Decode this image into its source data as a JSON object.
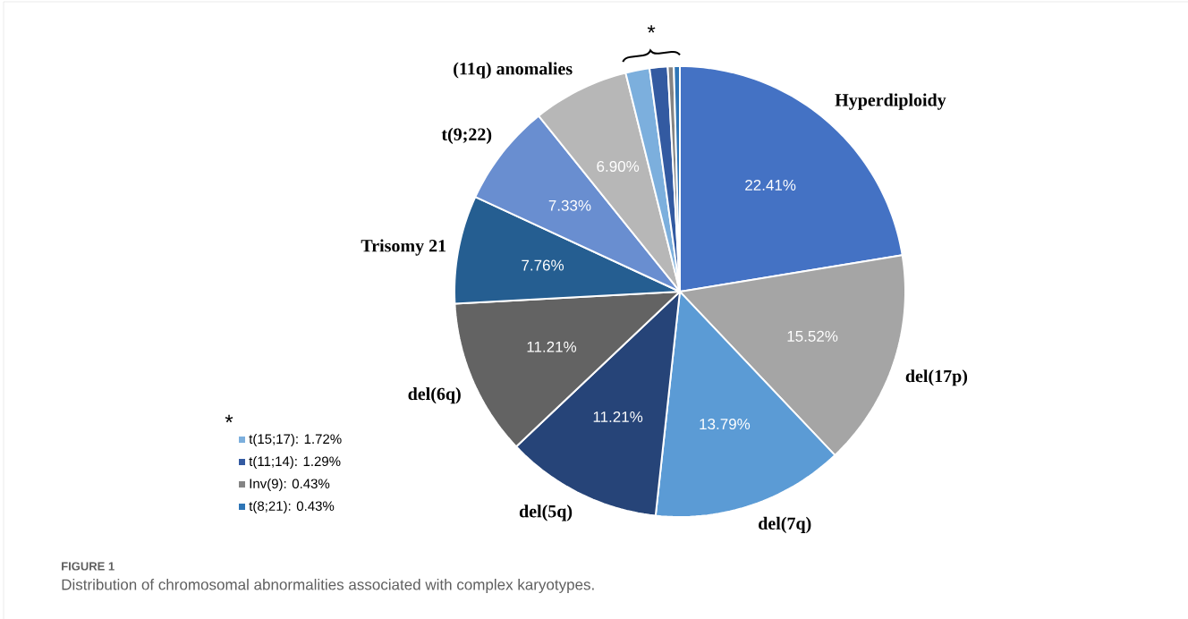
{
  "chart_data": {
    "type": "pie",
    "title": "FIGURE 1",
    "subtitle": "Distribution of chromosomal abnormalities associated with complex karyotypes.",
    "categories": [
      "Hyperdiploidy",
      "del(17p)",
      "del(7q)",
      "del(5q)",
      "del(6q)",
      "Trisomy 21",
      "t(9;22)",
      "(11q) anomalies",
      "t(15;17)",
      "t(11;14)",
      "Inv(9)",
      "t(8;21)"
    ],
    "values": [
      22.41,
      15.52,
      13.79,
      11.21,
      11.21,
      7.76,
      7.33,
      6.9,
      1.72,
      1.29,
      0.43,
      0.43
    ],
    "value_labels": [
      "22.41%",
      "15.52%",
      "13.79%",
      "11.21%",
      "11.21%",
      "7.76%",
      "7.33%",
      "6.90%",
      ": 1.72%",
      ": 1.29%",
      ": 0.43%",
      ": 0.43%"
    ],
    "colors": [
      "#4472c4",
      "#a5a5a5",
      "#5b9bd5",
      "#264478",
      "#636363",
      "#255e91",
      "#698ed0",
      "#b7b7b7",
      "#7cafdd",
      "#335aa1",
      "#848484",
      "#2e75b6"
    ],
    "legend": "bottom left",
    "annotations": [
      "*",
      "*"
    ]
  }
}
